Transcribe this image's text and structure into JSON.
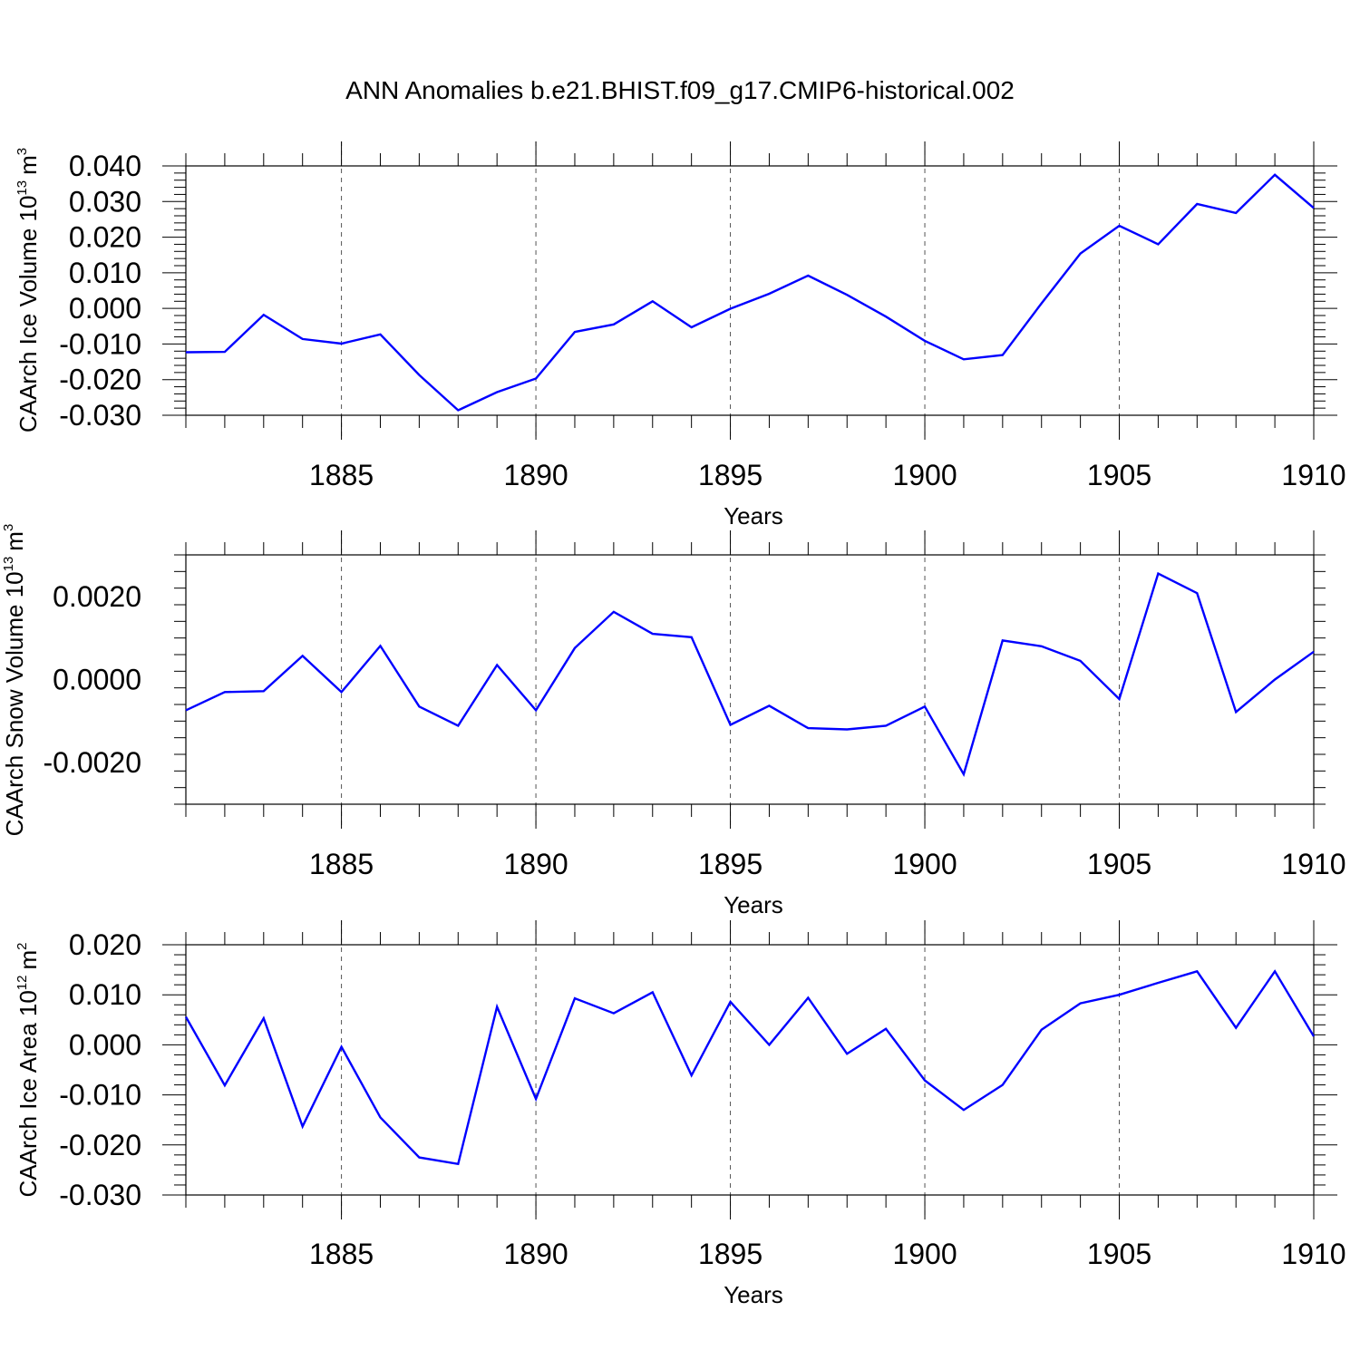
{
  "figure": {
    "title": "ANN Anomalies b.e21.BHIST.f09_g17.CMIP6-historical.002"
  },
  "series_color": "#0000ff",
  "chart_data": [
    {
      "type": "line",
      "title": "ANN Anomalies b.e21.BHIST.f09_g17.CMIP6-historical.002",
      "xlabel": "Years",
      "ylabel": {
        "text": "CAArch Ice Volume 10",
        "exp": "13",
        "unit": "m",
        "unit_exp": "3"
      },
      "xlim": [
        1881,
        1910
      ],
      "ylim": [
        -0.03,
        0.04
      ],
      "x_ticks": [
        1885,
        1890,
        1895,
        1900,
        1905,
        1910
      ],
      "x_tick_labels": [
        "1885",
        "1890",
        "1895",
        "1900",
        "1905",
        "1910"
      ],
      "y_ticks": [
        -0.03,
        -0.02,
        -0.01,
        0.0,
        0.01,
        0.02,
        0.03,
        0.04
      ],
      "y_tick_labels": [
        "-0.030",
        "-0.020",
        "-0.010",
        "0.000",
        "0.010",
        "0.020",
        "0.030",
        "0.040"
      ],
      "grid": "vertical dashed at major x ticks",
      "series": [
        {
          "name": "CAArch Ice Volume",
          "x": [
            1881,
            1882,
            1883,
            1884,
            1885,
            1886,
            1887,
            1888,
            1889,
            1890,
            1891,
            1892,
            1893,
            1894,
            1895,
            1896,
            1897,
            1898,
            1899,
            1900,
            1901,
            1902,
            1903,
            1904,
            1905,
            1906,
            1907,
            1908,
            1909,
            1910
          ],
          "values": [
            -0.0123,
            -0.0122,
            -0.0018,
            -0.0086,
            -0.0099,
            -0.0073,
            -0.0187,
            -0.0286,
            -0.0235,
            -0.0197,
            -0.0066,
            -0.0045,
            0.002,
            -0.0053,
            -0.0001,
            0.0041,
            0.0092,
            0.0038,
            -0.0023,
            -0.0091,
            -0.0143,
            -0.0131,
            0.0014,
            0.0154,
            0.0232,
            0.018,
            0.0293,
            0.0268,
            0.0375,
            0.0282
          ]
        }
      ]
    },
    {
      "type": "line",
      "xlabel": "Years",
      "ylabel": {
        "text": "CAArch Snow Volume 10",
        "exp": "13",
        "unit": "m",
        "unit_exp": "3"
      },
      "xlim": [
        1881,
        1910
      ],
      "ylim": [
        -0.003,
        0.003
      ],
      "x_ticks": [
        1885,
        1890,
        1895,
        1900,
        1905,
        1910
      ],
      "x_tick_labels": [
        "1885",
        "1890",
        "1895",
        "1900",
        "1905",
        "1910"
      ],
      "y_ticks": [
        -0.002,
        0.0,
        0.002
      ],
      "y_tick_labels": [
        "-0.0020",
        "0.0000",
        "0.0020"
      ],
      "grid": "vertical dashed at major x ticks",
      "series": [
        {
          "name": "CAArch Snow Volume",
          "x": [
            1881,
            1882,
            1883,
            1884,
            1885,
            1886,
            1887,
            1888,
            1889,
            1890,
            1891,
            1892,
            1893,
            1894,
            1895,
            1896,
            1897,
            1898,
            1899,
            1900,
            1901,
            1902,
            1903,
            1904,
            1905,
            1906,
            1907,
            1908,
            1909,
            1910
          ],
          "values": [
            -0.00074,
            -0.0003,
            -0.00028,
            0.00057,
            -0.0003,
            0.00081,
            -0.00065,
            -0.00111,
            0.00035,
            -0.00074,
            0.00076,
            0.00163,
            0.0011,
            0.00102,
            -0.00109,
            -0.00063,
            -0.00117,
            -0.0012,
            -0.00111,
            -0.00065,
            -0.00228,
            0.00094,
            0.0008,
            0.00045,
            -0.00047,
            0.00255,
            0.00208,
            -0.00078,
            0.0,
            0.00067
          ]
        }
      ]
    },
    {
      "type": "line",
      "xlabel": "Years",
      "ylabel": {
        "text": "CAArch Ice Area 10",
        "exp": "12",
        "unit": "m",
        "unit_exp": "2"
      },
      "xlim": [
        1881,
        1910
      ],
      "ylim": [
        -0.03,
        0.02
      ],
      "x_ticks": [
        1885,
        1890,
        1895,
        1900,
        1905,
        1910
      ],
      "x_tick_labels": [
        "1885",
        "1890",
        "1895",
        "1900",
        "1905",
        "1910"
      ],
      "y_ticks": [
        -0.03,
        -0.02,
        -0.01,
        0.0,
        0.01,
        0.02
      ],
      "y_tick_labels": [
        "-0.030",
        "-0.020",
        "-0.010",
        "0.000",
        "0.010",
        "0.020"
      ],
      "grid": "vertical dashed at major x ticks",
      "series": [
        {
          "name": "CAArch Ice Area",
          "x": [
            1881,
            1882,
            1883,
            1884,
            1885,
            1886,
            1887,
            1888,
            1889,
            1890,
            1891,
            1892,
            1893,
            1894,
            1895,
            1896,
            1897,
            1898,
            1899,
            1900,
            1901,
            1902,
            1903,
            1904,
            1905,
            1906,
            1907,
            1908,
            1909,
            1910
          ],
          "values": [
            0.0056,
            -0.0081,
            0.0053,
            -0.0163,
            -0.0004,
            -0.0145,
            -0.0225,
            -0.0238,
            0.0076,
            -0.0108,
            0.0093,
            0.0063,
            0.0105,
            -0.0061,
            0.0086,
            0.0,
            0.0094,
            -0.0018,
            0.0032,
            -0.0071,
            -0.013,
            -0.008,
            0.003,
            0.0083,
            0.01,
            0.0124,
            0.0147,
            0.0034,
            0.0147,
            0.0017
          ]
        }
      ]
    }
  ]
}
